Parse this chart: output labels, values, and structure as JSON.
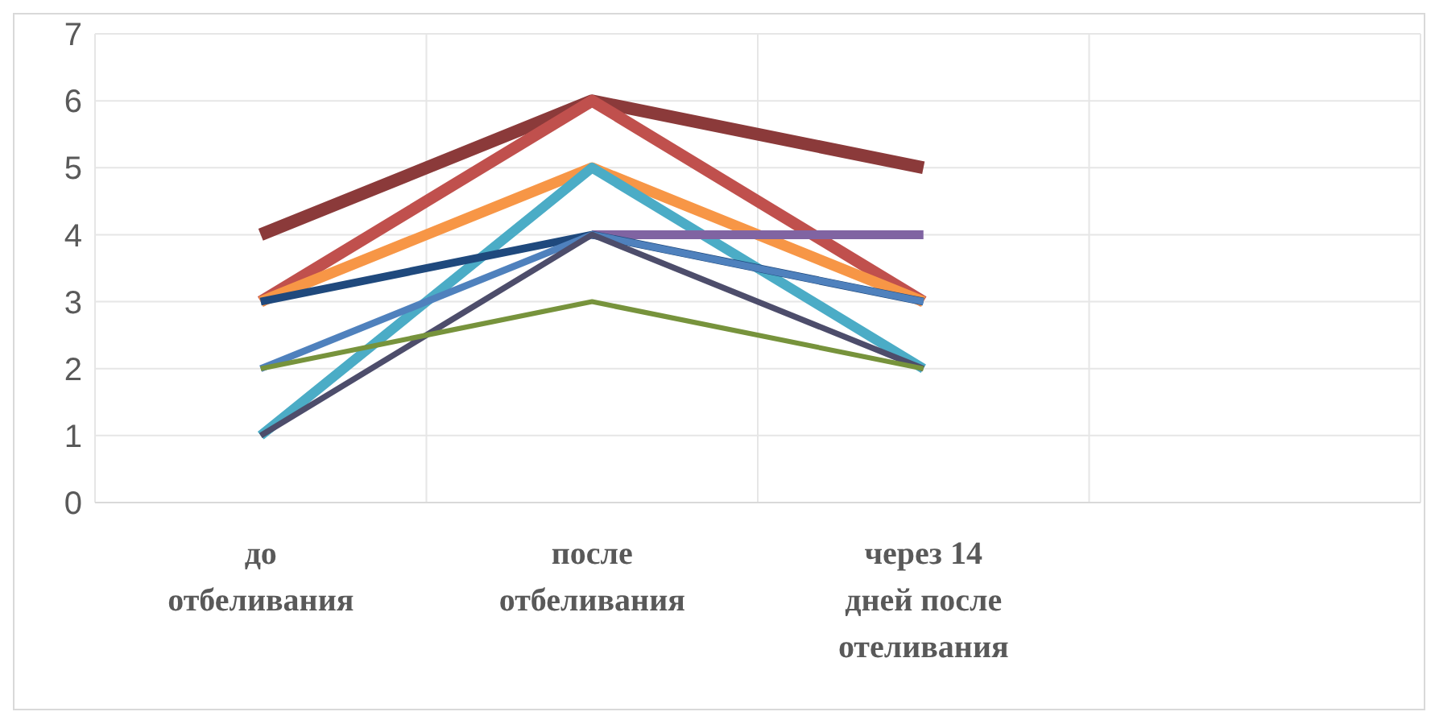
{
  "chart_data": {
    "type": "line",
    "categories": [
      "до отбеливания",
      "после отбеливания",
      "через 14 дней после отеливания",
      null
    ],
    "series": [
      {
        "color": "#8b3a3a",
        "values": [
          4,
          6,
          5,
          null
        ]
      },
      {
        "color": "#c0504d",
        "values": [
          3,
          6,
          3,
          null
        ]
      },
      {
        "color": "#f79646",
        "values": [
          3,
          5,
          3,
          null
        ]
      },
      {
        "color": "#4bacc6",
        "values": [
          1,
          5,
          2,
          null
        ]
      },
      {
        "color": "#8064a2",
        "values": [
          null,
          4,
          4,
          null
        ]
      },
      {
        "color": "#1f497d",
        "values": [
          3,
          4,
          3,
          null
        ]
      },
      {
        "color": "#4f81bd",
        "values": [
          2,
          4,
          3,
          null
        ]
      },
      {
        "color": "#4d4d6b",
        "values": [
          1,
          4,
          2,
          null
        ]
      },
      {
        "color": "#77933c",
        "values": [
          2,
          3,
          2,
          null
        ]
      }
    ],
    "ylim": [
      0,
      7
    ],
    "yticks": [
      0,
      1,
      2,
      3,
      4,
      5,
      6,
      7
    ],
    "grid": true,
    "legend": false,
    "marker": "none",
    "line_style": "solid"
  }
}
